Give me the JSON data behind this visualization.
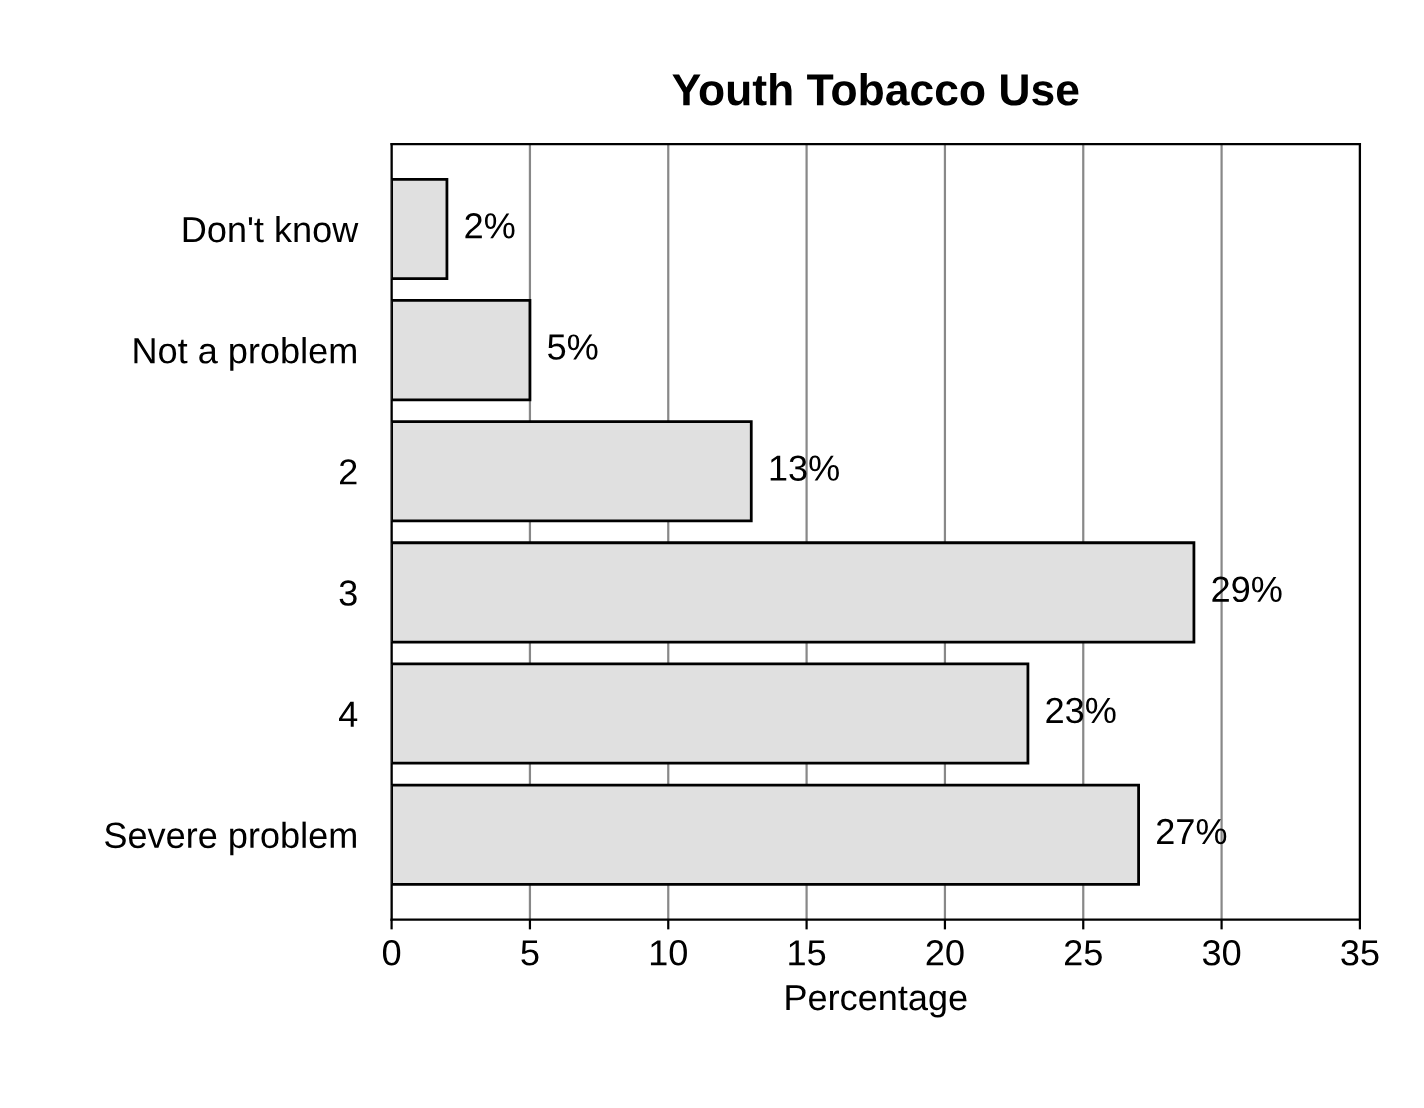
{
  "chart_data": {
    "type": "bar",
    "orientation": "horizontal",
    "title": "Youth Tobacco Use",
    "xlabel": "Percentage",
    "categories": [
      "Don't know",
      "Not a problem",
      "2",
      "3",
      "4",
      "Severe problem"
    ],
    "values": [
      2,
      5,
      13,
      29,
      23,
      27
    ],
    "value_labels": [
      "2%",
      "5%",
      "13%",
      "29%",
      "23%",
      "27%"
    ],
    "color": "#e0e0e0",
    "xlim": [
      0,
      35
    ],
    "xticks": [
      0,
      5,
      10,
      15,
      20,
      25,
      30,
      35
    ],
    "grid": "x",
    "legend": false
  }
}
